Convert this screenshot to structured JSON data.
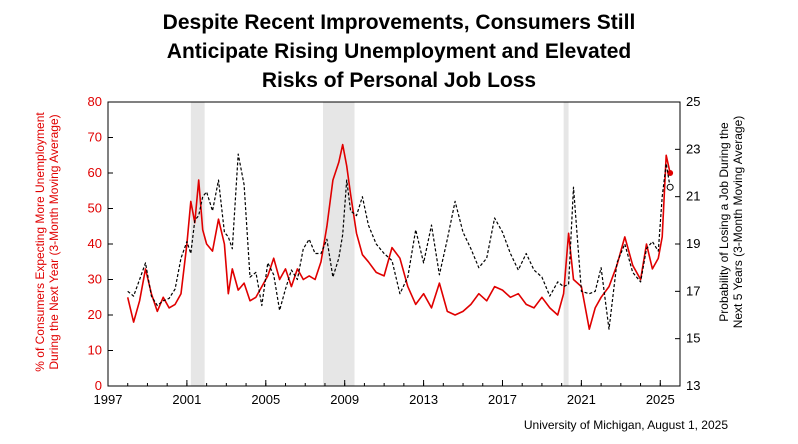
{
  "title_lines": [
    "Despite Recent Improvements, Consumers Still",
    "Anticipate Rising Unemployment and Elevated",
    "Risks of Personal Job Loss"
  ],
  "source": "University of Michigan, August 1, 2025",
  "colors": {
    "left_series": "#e00000",
    "right_series": "#000000",
    "recession": "#e6e6e6",
    "axis": "#000000"
  },
  "chart_data": {
    "type": "line",
    "yaxis_left": {
      "label_lines": [
        "% of Consumers Expecting More Unemployment",
        "During the Next Year (3-Month Moving Average)"
      ],
      "range": [
        0,
        80
      ],
      "ticks": [
        "0",
        "10",
        "20",
        "30",
        "40",
        "50",
        "60",
        "70",
        "80"
      ]
    },
    "yaxis_right": {
      "label_lines": [
        "Probability of Losing a Job During the",
        "Next 5 Years (3-Month Moving Average)"
      ],
      "range": [
        13,
        25
      ],
      "ticks": [
        "13",
        "15",
        "17",
        "19",
        "21",
        "23",
        "25"
      ]
    },
    "xaxis": {
      "range": [
        1997,
        2026
      ],
      "ticks": [
        "1997",
        "2001",
        "2005",
        "2009",
        "2013",
        "2017",
        "2021",
        "2025"
      ]
    },
    "recessions": [
      [
        2001.2,
        2001.9
      ],
      [
        2007.9,
        2009.5
      ],
      [
        2020.1,
        2020.35
      ]
    ],
    "series": [
      {
        "axis": "left",
        "style": "solid",
        "x": [
          1998.0,
          1998.3,
          1998.6,
          1998.9,
          1999.2,
          1999.5,
          1999.8,
          2000.1,
          2000.4,
          2000.7,
          2001.0,
          2001.2,
          2001.4,
          2001.6,
          2001.8,
          2002.0,
          2002.3,
          2002.6,
          2002.9,
          2003.1,
          2003.3,
          2003.6,
          2003.9,
          2004.2,
          2004.5,
          2004.8,
          2005.1,
          2005.4,
          2005.7,
          2006.0,
          2006.3,
          2006.6,
          2006.9,
          2007.2,
          2007.5,
          2007.8,
          2008.1,
          2008.4,
          2008.7,
          2008.9,
          2009.1,
          2009.3,
          2009.6,
          2009.9,
          2010.2,
          2010.6,
          2011.0,
          2011.4,
          2011.8,
          2012.2,
          2012.6,
          2013.0,
          2013.4,
          2013.8,
          2014.2,
          2014.6,
          2015.0,
          2015.4,
          2015.8,
          2016.2,
          2016.6,
          2017.0,
          2017.4,
          2017.8,
          2018.2,
          2018.6,
          2019.0,
          2019.4,
          2019.8,
          2020.1,
          2020.35,
          2020.6,
          2021.0,
          2021.4,
          2021.7,
          2022.0,
          2022.4,
          2022.8,
          2023.2,
          2023.6,
          2024.0,
          2024.3,
          2024.6,
          2024.9,
          2025.1,
          2025.3,
          2025.5
        ],
        "y": [
          25,
          18,
          24,
          33,
          26,
          21,
          25,
          22,
          23,
          26,
          40,
          52,
          46,
          58,
          44,
          40,
          38,
          47,
          40,
          26,
          33,
          27,
          29,
          24,
          25,
          28,
          31,
          36,
          30,
          33,
          28,
          33,
          30,
          31,
          30,
          35,
          45,
          58,
          63,
          68,
          62,
          54,
          43,
          37,
          35,
          32,
          31,
          39,
          36,
          28,
          23,
          26,
          22,
          29,
          21,
          20,
          21,
          23,
          26,
          24,
          28,
          27,
          25,
          26,
          23,
          22,
          25,
          22,
          20,
          26,
          43,
          30,
          28,
          16,
          22,
          25,
          28,
          34,
          42,
          34,
          30,
          40,
          33,
          36,
          42,
          65,
          60
        ]
      },
      {
        "axis": "right",
        "style": "dashed",
        "x": [
          1998.0,
          1998.3,
          1998.6,
          1998.9,
          1999.2,
          1999.5,
          1999.8,
          2000.1,
          2000.4,
          2000.7,
          2001.0,
          2001.2,
          2001.4,
          2001.6,
          2001.8,
          2002.0,
          2002.3,
          2002.6,
          2002.9,
          2003.1,
          2003.3,
          2003.6,
          2003.9,
          2004.2,
          2004.5,
          2004.8,
          2005.1,
          2005.4,
          2005.7,
          2006.0,
          2006.3,
          2006.6,
          2006.9,
          2007.2,
          2007.5,
          2007.8,
          2008.1,
          2008.4,
          2008.7,
          2008.9,
          2009.1,
          2009.3,
          2009.6,
          2009.9,
          2010.2,
          2010.6,
          2011.0,
          2011.4,
          2011.8,
          2012.2,
          2012.6,
          2013.0,
          2013.4,
          2013.8,
          2014.2,
          2014.6,
          2015.0,
          2015.4,
          2015.8,
          2016.2,
          2016.6,
          2017.0,
          2017.4,
          2017.8,
          2018.2,
          2018.6,
          2019.0,
          2019.4,
          2019.8,
          2020.1,
          2020.35,
          2020.6,
          2021.0,
          2021.4,
          2021.7,
          2022.0,
          2022.4,
          2022.8,
          2023.2,
          2023.6,
          2024.0,
          2024.3,
          2024.6,
          2024.9,
          2025.1,
          2025.3,
          2025.5
        ],
        "y": [
          17,
          16.8,
          17.5,
          18.2,
          16.8,
          16.4,
          16.6,
          16.7,
          17.1,
          18.4,
          19.1,
          18.6,
          20.0,
          20.2,
          21.0,
          21.2,
          20.4,
          21.7,
          19.5,
          19.3,
          18.8,
          22.8,
          21.5,
          17.6,
          17.8,
          16.4,
          18.2,
          17.7,
          16.2,
          17.1,
          17.9,
          17.5,
          18.8,
          19.2,
          18.6,
          18.6,
          19.2,
          17.6,
          18.4,
          19.4,
          21.7,
          20.4,
          20.2,
          21.0,
          19.8,
          19.0,
          18.6,
          18.3,
          16.9,
          17.6,
          19.6,
          18.2,
          19.8,
          17.7,
          19.2,
          20.8,
          19.5,
          18.8,
          18.0,
          18.4,
          20.1,
          19.5,
          18.6,
          17.9,
          18.6,
          17.9,
          17.6,
          16.8,
          17.4,
          17.2,
          17.3,
          21.4,
          17.0,
          16.9,
          17.0,
          18.0,
          15.4,
          18.2,
          19.0,
          17.8,
          17.4,
          18.8,
          19.1,
          18.7,
          21.0,
          22.4,
          21.4
        ]
      }
    ]
  }
}
